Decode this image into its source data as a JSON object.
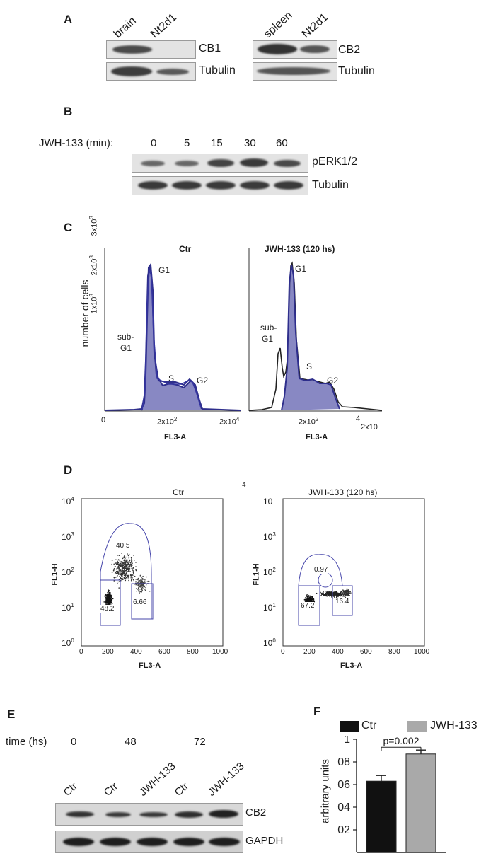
{
  "panelA": {
    "label": "A",
    "lanes_left": [
      "brain",
      "Nt2d1"
    ],
    "lanes_right": [
      "spleen",
      "Nt2d1"
    ],
    "row_labels_left": [
      "CB1",
      "Tubulin"
    ],
    "row_labels_right": [
      "CB2",
      "Tubulin"
    ]
  },
  "panelB": {
    "label": "B",
    "treatment_label": "JWH-133 (min):",
    "timepoints": [
      "0",
      "5",
      "15",
      "30",
      "60"
    ],
    "row_labels": [
      "pERK1/2",
      "Tubulin"
    ]
  },
  "panelC": {
    "label": "C",
    "ylabel": "number of cells",
    "left": {
      "title": "Ctr",
      "y_ticks": [
        "1x10",
        "2x10",
        "3x10"
      ],
      "y_tick_exp": "3",
      "x_ticks": [
        "0",
        "2x10",
        "2x10"
      ],
      "x_tick_exp": [
        "",
        "2",
        "4"
      ],
      "xlabel": "FL3-A",
      "annotations": [
        "G1",
        "sub-",
        "G1",
        "S",
        "G2"
      ]
    },
    "right": {
      "title": "JWH-133 (120 hs)",
      "x_ticks": [
        "2x10",
        "4",
        "2x10"
      ],
      "x_tick_exp": "2",
      "xlabel": "FL3-A",
      "annotations": [
        "G1",
        "sub-",
        "G1",
        "S",
        "G2"
      ]
    }
  },
  "panelD": {
    "label": "D",
    "stray_mark": "4",
    "left": {
      "title": "Ctr",
      "ylabel": "FL1-H",
      "xlabel": "FL3-A",
      "y_ticks": [
        "10",
        "10",
        "10",
        "10",
        "10"
      ],
      "y_exps": [
        "4",
        "3",
        "2",
        "1",
        "0"
      ],
      "x_ticks": [
        "0",
        "200",
        "400",
        "600",
        "800",
        "1000"
      ],
      "gate_values": [
        "40.5",
        "48.2",
        "6.66"
      ]
    },
    "right": {
      "title": "JWH-133 (120 hs)",
      "ylabel": "FL1-H",
      "xlabel": "FL3-A",
      "y_ticks": [
        "10",
        "10",
        "10",
        "10",
        "10"
      ],
      "y_exps": [
        "",
        "3",
        "2",
        "1",
        "0"
      ],
      "x_ticks": [
        "0",
        "200",
        "400",
        "600",
        "800",
        "1000"
      ],
      "gate_values": [
        "0.97",
        "67.2",
        "16.4"
      ]
    }
  },
  "panelE": {
    "label": "E",
    "time_label": "time (hs)",
    "timepoints": [
      "0",
      "48",
      "72"
    ],
    "lanes": [
      "Ctr",
      "Ctr",
      "JWH-133",
      "Ctr",
      "JWH-133"
    ],
    "row_labels": [
      "CB2",
      "GAPDH"
    ]
  },
  "panelF": {
    "label": "F",
    "legend": [
      "Ctr",
      "JWH-133"
    ],
    "ylabel": "arbitrary units",
    "y_ticks": [
      "02",
      "04",
      "06",
      "08",
      "1"
    ],
    "pvalue": "p=0.002"
  },
  "chart_data": {
    "type": "bar",
    "categories": [
      "Ctr",
      "JWH-133"
    ],
    "values": [
      0.63,
      0.87
    ],
    "errors": [
      0.05,
      0.035
    ],
    "ylabel": "arbitrary units",
    "ylim": [
      0,
      1.0
    ],
    "colors": [
      "#111111",
      "#a9a9a9"
    ],
    "annotation": "p=0.002"
  }
}
